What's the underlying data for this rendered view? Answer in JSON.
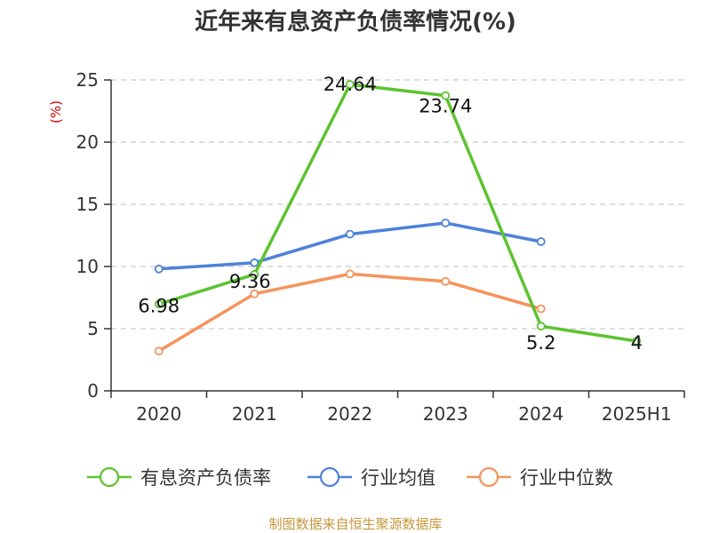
{
  "chart_data": {
    "type": "line",
    "title": "近年来有息资产负债率情况(%)",
    "ylabel": "(%)",
    "categories": [
      "2020",
      "2021",
      "2022",
      "2023",
      "2024",
      "2025H1"
    ],
    "ylim": [
      0,
      25
    ],
    "yticks": [
      "0",
      "5",
      "10",
      "15",
      "20",
      "25"
    ],
    "grid": true,
    "legend_position": "bottom",
    "series": [
      {
        "name": "有息资产负债率",
        "color": "#5cc330",
        "values": [
          6.98,
          9.36,
          24.64,
          23.74,
          5.2,
          4
        ],
        "labels": [
          "6.98",
          "9.36",
          "24.64",
          "23.74",
          "5.2",
          "4"
        ]
      },
      {
        "name": "行业均值",
        "color": "#4e82d9",
        "values": [
          9.8,
          10.3,
          12.6,
          13.5,
          12.0,
          null
        ],
        "labels": []
      },
      {
        "name": "行业中位数",
        "color": "#f5935c",
        "values": [
          3.2,
          7.8,
          9.4,
          8.8,
          6.6,
          null
        ],
        "labels": []
      }
    ],
    "source": "制图数据来自恒生聚源数据库"
  }
}
